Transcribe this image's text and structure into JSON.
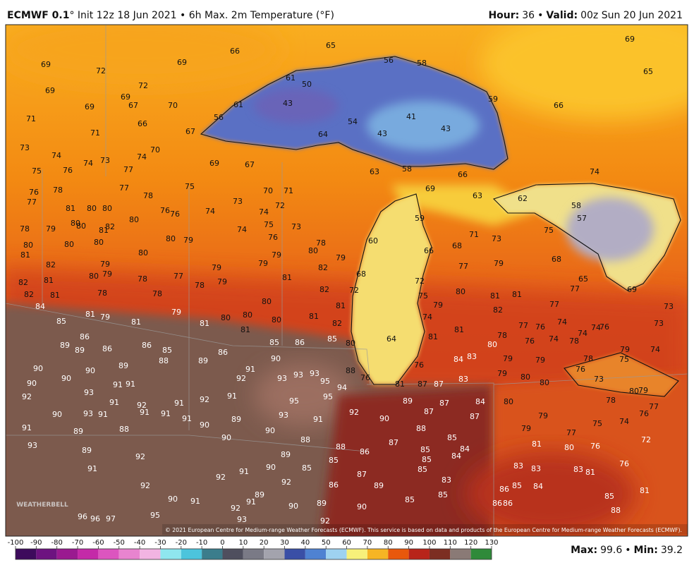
{
  "header": {
    "model": "ECMWF 0.1",
    "title": "° Init 12z 18 Jun 2021 • 6h Max. 2m Temperature (°F)",
    "hour_label": "Hour:",
    "hour": "36",
    "separator": "•",
    "valid_label": "Valid:",
    "valid": "00z Sun 20 Jun 2021"
  },
  "map": {
    "labels": [
      66,
      65,
      69,
      69,
      72,
      56,
      58,
      69,
      65,
      72,
      61,
      50,
      69,
      69,
      67,
      70,
      69,
      43,
      61,
      59,
      66,
      56,
      41,
      71,
      66,
      43,
      71,
      67,
      54,
      43,
      64,
      73,
      70,
      74,
      74,
      74,
      73,
      69,
      67,
      75,
      76,
      77,
      63,
      58,
      66,
      74,
      76,
      78,
      77,
      75,
      70,
      71,
      69,
      63,
      62,
      77,
      78,
      73,
      72,
      81,
      80,
      80,
      76,
      76,
      74,
      74,
      58,
      57,
      59,
      78,
      79,
      80,
      80,
      81,
      82,
      80,
      74,
      75,
      73,
      71,
      73,
      75,
      80,
      80,
      80,
      80,
      79,
      76,
      78,
      60,
      66,
      68,
      81,
      80,
      79,
      80,
      79,
      82,
      79,
      79,
      79,
      82,
      77,
      79,
      68,
      80,
      79,
      78,
      81,
      68,
      72,
      65,
      82,
      81,
      77,
      78,
      79,
      82,
      72,
      80,
      81,
      81,
      77,
      69,
      82,
      81,
      78,
      78,
      75,
      79,
      82,
      77,
      73,
      84,
      81,
      79,
      80,
      81,
      74,
      79,
      80,
      80,
      81,
      85,
      81,
      81,
      80,
      82,
      77,
      76,
      74,
      81,
      74,
      73,
      76,
      86,
      81,
      85,
      64,
      81,
      78,
      76,
      74,
      74,
      89,
      89,
      86,
      86,
      85,
      85,
      86,
      80,
      80,
      78,
      79,
      74,
      78,
      75,
      88,
      89,
      86,
      84,
      83,
      79,
      79,
      90,
      90,
      89,
      90,
      88,
      76,
      76,
      91,
      93,
      93,
      79,
      80,
      80,
      76,
      73,
      90,
      90,
      91,
      91,
      92,
      93,
      95,
      94,
      81,
      87,
      87,
      83,
      80,
      79,
      93,
      92,
      91,
      92,
      91,
      92,
      91,
      95,
      95,
      89,
      87,
      84,
      80,
      78,
      77,
      90,
      93,
      91,
      91,
      91,
      93,
      92,
      87,
      87,
      79,
      76,
      91,
      89,
      91,
      90,
      74,
      88,
      91,
      89,
      88,
      90,
      90,
      79,
      77,
      75,
      90,
      88,
      87,
      85,
      72,
      93,
      89,
      88,
      86,
      84,
      81,
      80,
      76,
      92,
      89,
      85,
      84,
      85,
      85,
      83,
      83,
      83,
      81,
      76,
      91,
      91,
      90,
      85,
      87,
      85,
      83,
      92,
      92,
      86,
      89,
      92,
      86,
      85,
      84,
      81,
      90,
      89,
      85,
      85,
      85,
      91,
      96,
      96,
      97,
      95,
      92,
      91,
      90,
      89,
      90,
      86,
      86,
      88,
      93,
      92
    ],
    "logo": "WEATHERBELL",
    "copyright": "© 2021 European Centre for Medium-range Weather Forecasts (ECMWF). This service is based on data and products of the European Centre for Medium-range Weather Forecasts (ECMWF)."
  },
  "colorbar": {
    "ticks": [
      -100,
      -90,
      -80,
      -70,
      -60,
      -50,
      -40,
      -30,
      -20,
      -10,
      0,
      10,
      20,
      30,
      40,
      50,
      60,
      70,
      80,
      90,
      100,
      110,
      120,
      130
    ],
    "colors": [
      "#3d0b5c",
      "#6d1380",
      "#9a1a90",
      "#c42aa8",
      "#dc55bf",
      "#e884cf",
      "#f2b4e2",
      "#8fe6ee",
      "#4cc4dc",
      "#3b7d8c",
      "#4f4f5e",
      "#7a7a86",
      "#a3a3ad",
      "#3a4fa6",
      "#4f82d2",
      "#9ed2f0",
      "#f7f07a",
      "#f6b524",
      "#e8580c",
      "#b8241a",
      "#7c2e22",
      "#8a7a76",
      "#2f8a3a"
    ]
  },
  "footer": {
    "max_label": "Max:",
    "max": "99.6",
    "separator": "•",
    "min_label": "Min:",
    "min": "39.2"
  }
}
